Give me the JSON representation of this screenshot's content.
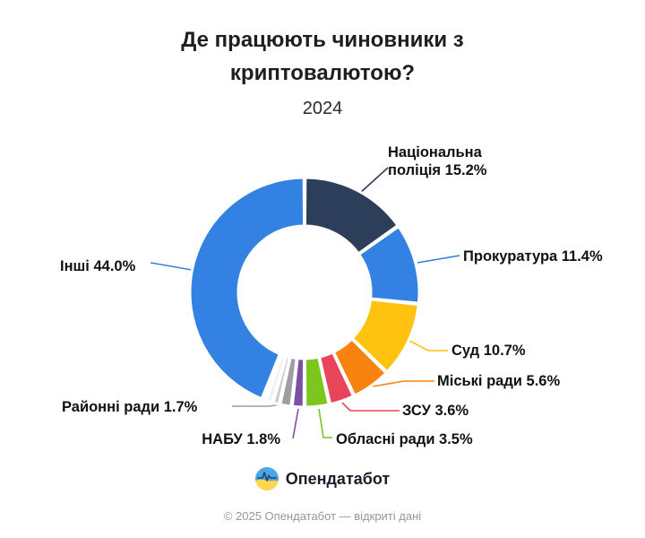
{
  "title": "Де працюють чиновники з криптовалютою?",
  "subtitle": "2024",
  "footer": {
    "brand": "Опендатабот",
    "copyright": "© 2025 Опендатабот — відкриті дані",
    "logo_icon": "opendatabot-pulse-circle-icon",
    "logo_colors": {
      "top": "#4BA6E8",
      "bottom": "#FFD74D",
      "pulse": "#2D3E5B"
    }
  },
  "chart_data": {
    "type": "pie",
    "variant": "donut",
    "unit": "%",
    "start_angle_deg": 0,
    "direction": "clockwise",
    "title": "Де працюють чиновники з криптовалютою?",
    "subtitle": "2024",
    "legend_position": "outside-callouts",
    "segments": [
      {
        "name": "Національна поліція",
        "value": 15.2,
        "color": "#2D3E5B",
        "label": "Національна поліція 15.2%"
      },
      {
        "name": "Прокуратура",
        "value": 11.4,
        "color": "#3382E3",
        "label": "Прокуратура 11.4%"
      },
      {
        "name": "Суд",
        "value": 10.7,
        "color": "#FFC20E",
        "label": "Суд 10.7%"
      },
      {
        "name": "Міські ради",
        "value": 5.6,
        "color": "#F8830E",
        "label": "Міські ради 5.6%"
      },
      {
        "name": "ЗСУ",
        "value": 3.6,
        "color": "#E8455A",
        "label": "ЗСУ 3.6%"
      },
      {
        "name": "Обласні ради",
        "value": 3.5,
        "color": "#7CC61E",
        "label": "Обласні ради 3.5%"
      },
      {
        "name": "НАБУ",
        "value": 1.8,
        "color": "#7C50A7",
        "label": "НАБУ 1.8%"
      },
      {
        "name": "Районні ради",
        "value": 1.7,
        "color": "#9E9EA3",
        "label": "Районні ради 1.7%"
      },
      {
        "name": "",
        "value": 1.0,
        "color": "#CCCCD0",
        "label": ""
      },
      {
        "name": "",
        "value": 1.0,
        "color": "#EFEFF1",
        "label": ""
      },
      {
        "name": "",
        "value": 0.5,
        "color": "#2D3E5B",
        "label": ""
      },
      {
        "name": "Інші",
        "value": 44.0,
        "color": "#3382E3",
        "label": "Інші 44.0%"
      }
    ]
  }
}
